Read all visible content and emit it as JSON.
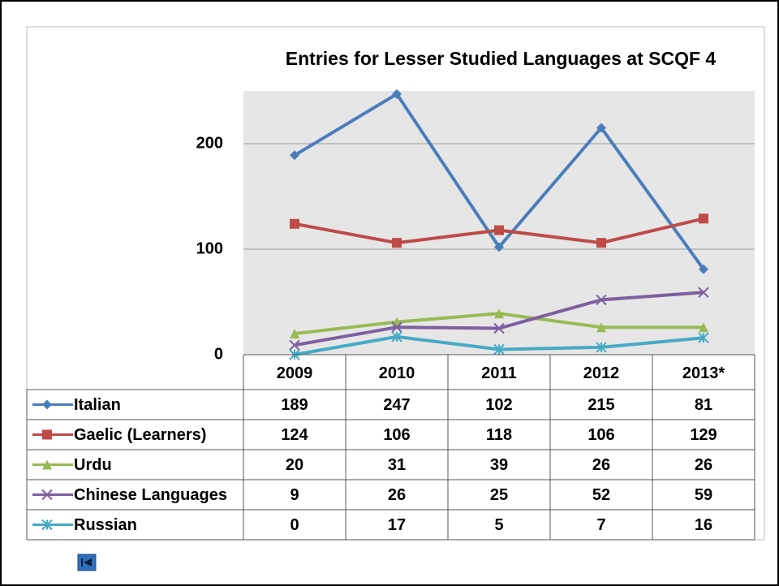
{
  "chart_data": {
    "type": "line",
    "title": "Entries for Lesser Studied Languages at SCQF 4",
    "categories": [
      "2009",
      "2010",
      "2011",
      "2012",
      "2013*"
    ],
    "series": [
      {
        "name": "Italian",
        "color": "#4a7ebb",
        "marker": "diamond",
        "values": [
          189,
          247,
          102,
          215,
          81
        ]
      },
      {
        "name": "Gaelic (Learners)",
        "color": "#be4b48",
        "marker": "square",
        "values": [
          124,
          106,
          118,
          106,
          129
        ]
      },
      {
        "name": "Urdu",
        "color": "#98b954",
        "marker": "triangle",
        "values": [
          20,
          31,
          39,
          26,
          26
        ]
      },
      {
        "name": "Chinese Languages",
        "color": "#7d60a0",
        "marker": "x",
        "values": [
          9,
          26,
          25,
          52,
          59
        ]
      },
      {
        "name": "Russian",
        "color": "#46aac5",
        "marker": "star",
        "values": [
          0,
          17,
          5,
          7,
          16
        ]
      }
    ],
    "ylim": [
      0,
      250
    ],
    "yticks": [
      0,
      100,
      200
    ],
    "grid": true,
    "data_table": true
  }
}
